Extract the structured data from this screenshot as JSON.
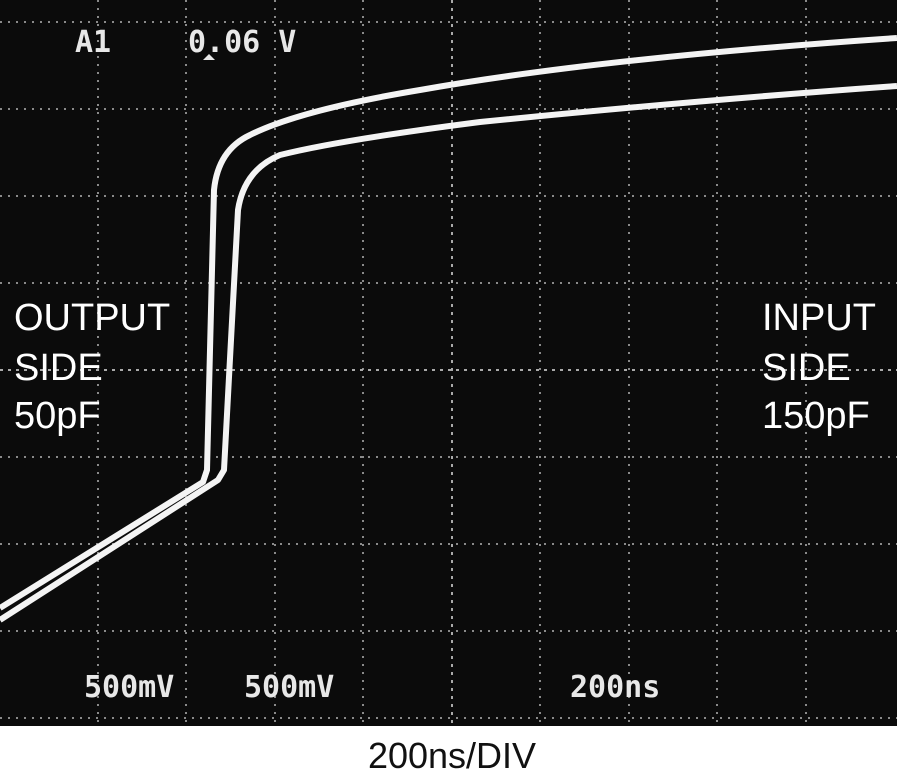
{
  "screen": {
    "channel": "A1",
    "trigger_level": "0.06 V",
    "scale_1": "500mV",
    "scale_2": "500mV",
    "timebase": "200ns"
  },
  "labels": {
    "left": [
      "OUTPUT",
      "SIDE",
      "50pF"
    ],
    "right": [
      "INPUT",
      "SIDE",
      "150pF"
    ]
  },
  "caption": "200ns/DIV"
}
